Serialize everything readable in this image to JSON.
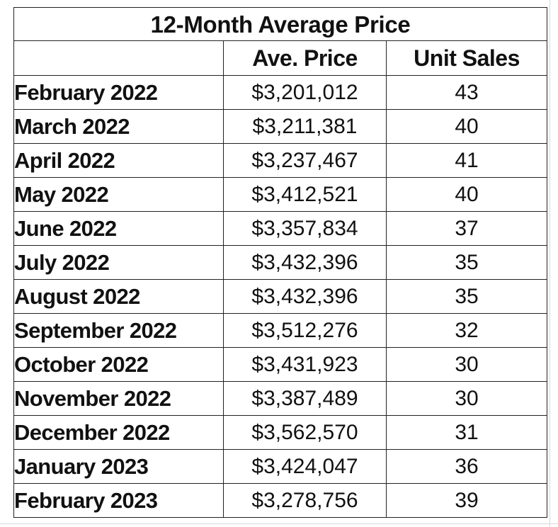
{
  "chart_data": {
    "type": "table",
    "title": "12-Month Average Price",
    "columns": [
      "",
      "Ave. Price",
      "Unit Sales"
    ],
    "rows": [
      {
        "month": "February 2022",
        "price": "$3,201,012",
        "sales": "43"
      },
      {
        "month": "March 2022",
        "price": "$3,211,381",
        "sales": "40"
      },
      {
        "month": "April 2022",
        "price": "$3,237,467",
        "sales": "41"
      },
      {
        "month": "May 2022",
        "price": "$3,412,521",
        "sales": "40"
      },
      {
        "month": "June 2022",
        "price": "$3,357,834",
        "sales": "37"
      },
      {
        "month": "July 2022",
        "price": "$3,432,396",
        "sales": "35"
      },
      {
        "month": "August 2022",
        "price": "$3,432,396",
        "sales": "35"
      },
      {
        "month": "September 2022",
        "price": "$3,512,276",
        "sales": "32"
      },
      {
        "month": "October 2022",
        "price": "$3,431,923",
        "sales": "30"
      },
      {
        "month": "November 2022",
        "price": "$3,387,489",
        "sales": "30"
      },
      {
        "month": "December 2022",
        "price": "$3,562,570",
        "sales": "31"
      },
      {
        "month": "January 2023",
        "price": "$3,424,047",
        "sales": "36"
      },
      {
        "month": "February 2023",
        "price": "$3,278,756",
        "sales": "39"
      }
    ]
  }
}
